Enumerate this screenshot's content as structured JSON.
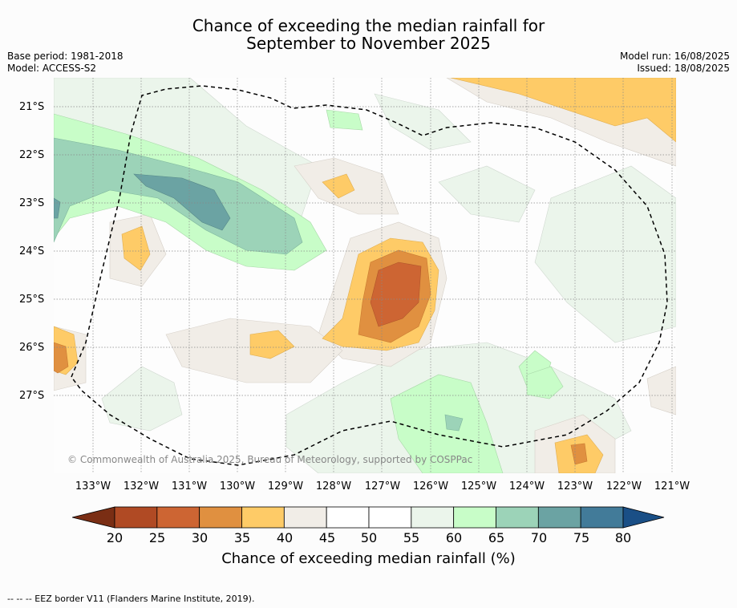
{
  "title_line1": "Chance of exceeding the median rainfall for",
  "title_line2": "September to November 2025",
  "base_period": "Base period: 1981-2018",
  "model": "Model: ACCESS-S2",
  "model_run": "Model run: 16/08/2025",
  "issued": "Issued: 18/08/2025",
  "copyright": "© Commonwealth of Australia 2025, Bureau of Meteorology, supported by COSPPac",
  "colorbar": {
    "title": "Chance of exceeding median rainfall (%)",
    "ticks": [
      "20",
      "25",
      "30",
      "35",
      "40",
      "45",
      "50",
      "55",
      "60",
      "65",
      "70",
      "75",
      "80"
    ],
    "colors": [
      "#7a2e14",
      "#b04a24",
      "#cd6533",
      "#e09040",
      "#fecb67",
      "#f1ede7",
      "#ffffff",
      "#ffffff",
      "#ebf5eb",
      "#c8fdc8",
      "#9cd3b8",
      "#6ba3a3",
      "#427b99",
      "#1a4f86"
    ]
  },
  "lat_labels": [
    "21°S",
    "22°S",
    "23°S",
    "24°S",
    "25°S",
    "26°S",
    "27°S"
  ],
  "lon_labels": [
    "133°W",
    "132°W",
    "131°W",
    "130°W",
    "129°W",
    "128°W",
    "127°W",
    "126°W",
    "125°W",
    "124°W",
    "123°W",
    "122°W",
    "121°W"
  ],
  "footer": "--  --  -- EEZ border V11 (Flanders Marine Institute, 2019)."
}
